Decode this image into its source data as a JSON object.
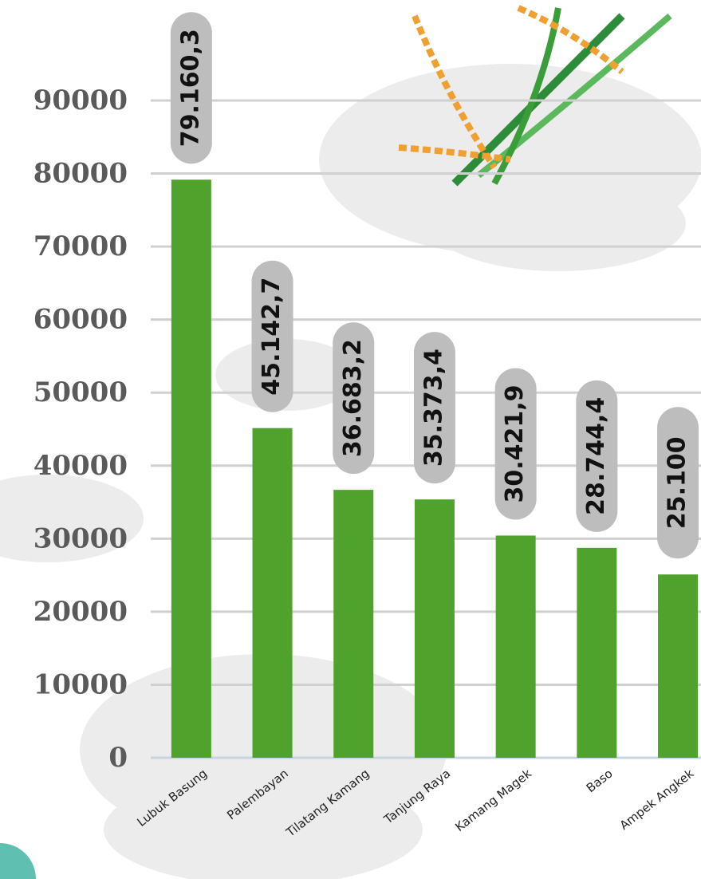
{
  "chart_data": {
    "type": "bar",
    "categories": [
      "Lubuk Basung",
      "Palembayan",
      "Tilatang Kamang",
      "Tanjung Raya",
      "Kamang Magek",
      "Baso",
      "Ampek Angkek"
    ],
    "values": [
      79160.3,
      45142.7,
      36683.2,
      35373.4,
      30421.9,
      28744.4,
      25100
    ],
    "value_labels": [
      "79.160,3",
      "45.142,7",
      "36.683,2",
      "35.373,4",
      "30.421,9",
      "28.744,4",
      "25.100"
    ],
    "color": "#4fa22c",
    "ylim": [
      0,
      90000
    ],
    "yticks": [
      0,
      10000,
      20000,
      30000,
      40000,
      50000,
      60000,
      70000,
      80000,
      90000
    ],
    "grid": true
  }
}
